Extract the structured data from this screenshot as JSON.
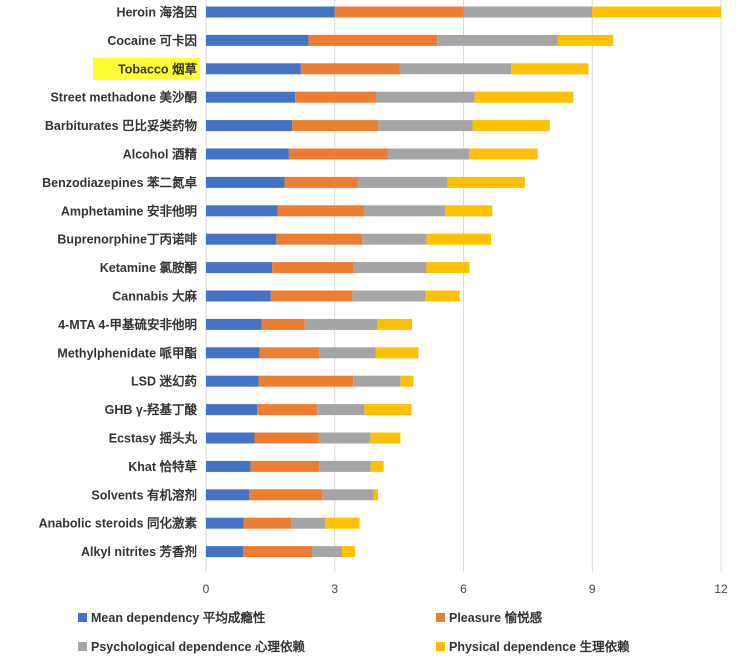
{
  "chart_data": {
    "type": "bar",
    "orientation": "horizontal",
    "stacked": true,
    "categories": [
      "Heroin 海洛因",
      "Cocaine 可卡因",
      "Tobacco 烟草",
      "Street methadone 美沙酮",
      "Barbiturates 巴比妥类药物",
      "Alcohol 酒精",
      "Benzodiazepines 苯二氮卓",
      "Amphetamine 安非他明",
      "Buprenorphine丁丙诺啡",
      "Ketamine 氯胺酮",
      "Cannabis 大麻",
      "4-MTA 4-甲基硫安非他明",
      "Methylphenidate 哌甲酯",
      "LSD 迷幻药",
      "GHB γ-羟基丁酸",
      "Ecstasy 摇头丸",
      "Khat 恰特草",
      "Solvents 有机溶剂",
      "Anabolic steroids 同化激素",
      "Alkyl nitrites 芳香剂"
    ],
    "highlighted_category": "Tobacco 烟草",
    "series": [
      {
        "name": "Mean dependency 平均成瘾性",
        "color": "#4472c4",
        "values": [
          3.0,
          2.39,
          2.21,
          2.08,
          2.01,
          1.93,
          1.83,
          1.67,
          1.64,
          1.54,
          1.51,
          1.3,
          1.25,
          1.23,
          1.19,
          1.13,
          1.04,
          1.01,
          0.88,
          0.87
        ]
      },
      {
        "name": "Pleasure 愉悦感",
        "color": "#ed7d31",
        "values": [
          3.0,
          3.0,
          2.3,
          1.88,
          2.0,
          2.3,
          1.7,
          2.0,
          2.0,
          1.9,
          1.9,
          1.0,
          1.4,
          2.2,
          1.4,
          1.5,
          1.6,
          1.7,
          1.1,
          1.6
        ]
      },
      {
        "name": "Psychological dependence 心理依赖",
        "color": "#a5a5a5",
        "values": [
          3.0,
          2.8,
          2.6,
          2.3,
          2.2,
          1.9,
          2.1,
          1.9,
          1.5,
          1.7,
          1.7,
          1.7,
          1.3,
          1.1,
          1.1,
          1.2,
          1.2,
          1.2,
          0.8,
          0.7
        ]
      },
      {
        "name": "Physical dependence 生理依赖",
        "color": "#ffc000",
        "values": [
          3.0,
          1.3,
          1.8,
          2.3,
          1.8,
          1.6,
          1.8,
          1.1,
          1.5,
          1.0,
          0.8,
          0.8,
          1.0,
          0.3,
          1.1,
          0.7,
          0.3,
          0.1,
          0.8,
          0.3
        ]
      }
    ],
    "xlim": [
      0,
      12
    ],
    "xticks": [
      "0",
      "3",
      "6",
      "9",
      "12"
    ],
    "xlabel": "",
    "ylabel": "",
    "title": "",
    "grid": true,
    "legend_position": "bottom"
  }
}
